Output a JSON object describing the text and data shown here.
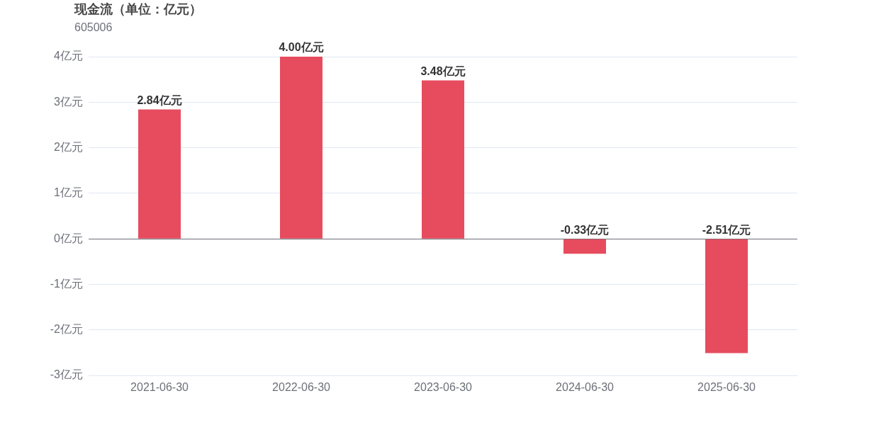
{
  "chart_data": {
    "type": "bar",
    "title": "现金流（单位：亿元）",
    "subtitle": "605006",
    "categories": [
      "2021-06-30",
      "2022-06-30",
      "2023-06-30",
      "2024-06-30",
      "2025-06-30"
    ],
    "values": [
      2.84,
      4.0,
      3.48,
      -0.33,
      -2.51
    ],
    "value_labels": [
      "2.84亿元",
      "4.00亿元",
      "3.48亿元",
      "-0.33亿元",
      "-2.51亿元"
    ],
    "color": "#e64c5e",
    "ylim": [
      -3,
      4
    ],
    "yticks": [
      {
        "value": -3,
        "label": "-3亿元"
      },
      {
        "value": -2,
        "label": "-2亿元"
      },
      {
        "value": -1,
        "label": "-1亿元"
      },
      {
        "value": 0,
        "label": "0亿元"
      },
      {
        "value": 1,
        "label": "1亿元"
      },
      {
        "value": 2,
        "label": "2亿元"
      },
      {
        "value": 3,
        "label": "3亿元"
      },
      {
        "value": 4,
        "label": "4亿元"
      }
    ],
    "grid": "y",
    "legend": false
  }
}
